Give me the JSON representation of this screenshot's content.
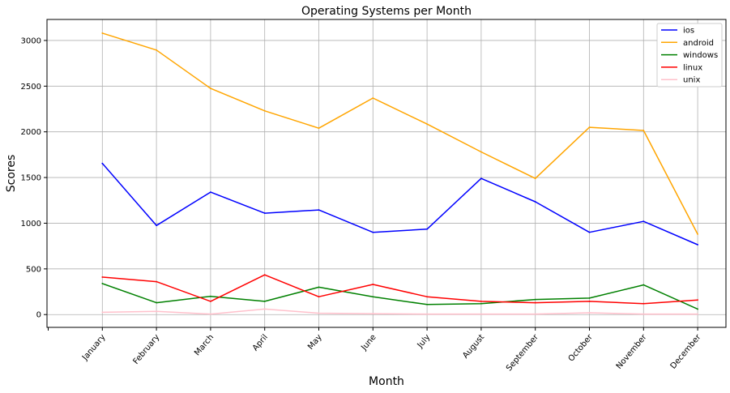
{
  "chart_data": {
    "type": "line",
    "title": "Operating Systems per Month",
    "xlabel": "Month",
    "ylabel": "Scores",
    "categories": [
      "January",
      "February",
      "March",
      "April",
      "May",
      "June",
      "July",
      "August",
      "September",
      "October",
      "November",
      "December"
    ],
    "y_ticks": [
      0,
      500,
      1000,
      1500,
      2000,
      2500,
      3000
    ],
    "ylim": [
      -140,
      3230
    ],
    "grid": true,
    "legend_position": "top-right",
    "series": [
      {
        "name": "ios",
        "color": "#0000ff",
        "values": [
          1655,
          975,
          1340,
          1110,
          1145,
          900,
          935,
          1490,
          1235,
          900,
          1020,
          765
        ]
      },
      {
        "name": "android",
        "color": "#ffa500",
        "values": [
          3080,
          2895,
          2475,
          2230,
          2040,
          2370,
          2085,
          1780,
          1490,
          2050,
          2015,
          880
        ]
      },
      {
        "name": "windows",
        "color": "#008000",
        "values": [
          340,
          130,
          200,
          145,
          300,
          195,
          110,
          120,
          165,
          180,
          325,
          60
        ]
      },
      {
        "name": "linux",
        "color": "#ff0000",
        "values": [
          410,
          360,
          145,
          435,
          195,
          330,
          195,
          145,
          130,
          145,
          120,
          160
        ]
      },
      {
        "name": "unix",
        "color": "#ffc0cb",
        "values": [
          25,
          35,
          5,
          60,
          15,
          10,
          5,
          5,
          5,
          20,
          5,
          5
        ]
      }
    ]
  }
}
